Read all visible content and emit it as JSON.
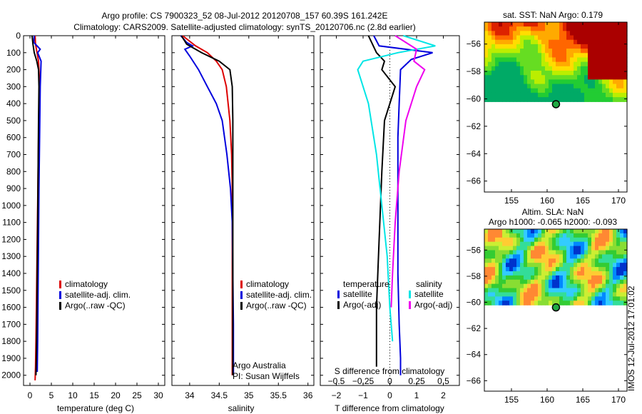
{
  "header": {
    "line1": "Argo profile: CS 7900323_52 08-Jul-2012 20120708_157 60.39S 161.242E",
    "line2": "Climatology: CARS2009. Satellite-adjusted climatology: synTS_20120706.nc (2.8d earlier)"
  },
  "side_text": "IMOS 12-Jul-2012 17:01:02",
  "chart_data": [
    {
      "id": "temperature",
      "type": "line",
      "xlabel": "temperature (deg C)",
      "xlim": [
        -1.5,
        31.5
      ],
      "xticks": [
        0,
        5,
        10,
        15,
        20,
        25,
        30
      ],
      "ylim": [
        0,
        2060
      ],
      "yticks": [
        0,
        100,
        200,
        300,
        400,
        500,
        600,
        700,
        800,
        900,
        1000,
        1100,
        1200,
        1300,
        1400,
        1500,
        1600,
        1700,
        1800,
        1900,
        2000
      ],
      "legend": [
        "climatology",
        "satellite-adj. clim.",
        "Argo(..raw -QC)"
      ],
      "series": [
        {
          "name": "climatology",
          "color": "#dd0000",
          "x": [
            1.2,
            1.3,
            2.0,
            2.2,
            2.1,
            2.0,
            1.9,
            1.8,
            1.7,
            1.6,
            1.5,
            1.4,
            1.3,
            1.2
          ],
          "y": [
            0,
            50,
            150,
            250,
            400,
            600,
            800,
            1000,
            1200,
            1400,
            1600,
            1800,
            1950,
            2030
          ]
        },
        {
          "name": "satellite-adj. clim.",
          "color": "#0000dd",
          "x": [
            1.0,
            0.9,
            2.4,
            1.8,
            2.6,
            2.4,
            2.3,
            2.2,
            2.1,
            2.0,
            1.9,
            1.8,
            1.7
          ],
          "y": [
            0,
            40,
            80,
            100,
            150,
            300,
            500,
            700,
            900,
            1200,
            1500,
            1800,
            1980
          ]
        },
        {
          "name": "Argo(..raw -QC)",
          "color": "#000000",
          "x": [
            0.5,
            0.7,
            1.0,
            1.6,
            2.0,
            2.1,
            2.0,
            1.9,
            1.8,
            1.7,
            1.6,
            1.5,
            1.4
          ],
          "y": [
            0,
            50,
            100,
            150,
            200,
            300,
            500,
            800,
            1100,
            1400,
            1700,
            1900,
            2000
          ]
        }
      ]
    },
    {
      "id": "salinity",
      "type": "line",
      "xlabel": "salinity",
      "xlim": [
        33.7,
        36.1
      ],
      "xticks": [
        34,
        34.5,
        35,
        35.5,
        36
      ],
      "xtick_labels": [
        "34",
        "34.5",
        "35",
        "35.5",
        "36"
      ],
      "ylim": [
        0,
        2060
      ],
      "legend": [
        "climatology",
        "satellite-adj. clim.",
        "Argo(..raw -QC)"
      ],
      "annotation": [
        "Argo Australia",
        "PI: Susan Wijffels"
      ],
      "series": [
        {
          "name": "climatology",
          "color": "#dd0000",
          "x": [
            33.88,
            34.1,
            34.3,
            34.45,
            34.55,
            34.62,
            34.68,
            34.71,
            34.72,
            34.72,
            34.72,
            34.72,
            34.72
          ],
          "y": [
            0,
            60,
            100,
            150,
            200,
            300,
            500,
            700,
            900,
            1200,
            1500,
            1800,
            2000
          ]
        },
        {
          "name": "satellite-adj. clim.",
          "color": "#0000dd",
          "x": [
            33.85,
            33.95,
            34.05,
            33.92,
            34.0,
            34.15,
            34.3,
            34.45,
            34.55,
            34.63,
            34.69,
            34.72,
            34.73,
            34.74,
            34.74
          ],
          "y": [
            0,
            40,
            60,
            80,
            120,
            200,
            300,
            400,
            500,
            700,
            900,
            1100,
            1400,
            1700,
            2000
          ]
        },
        {
          "name": "Argo(..raw -QC)",
          "color": "#000000",
          "x": [
            33.86,
            33.95,
            34.2,
            34.5,
            34.68,
            34.72,
            34.73,
            34.73,
            34.73,
            34.73,
            34.73
          ],
          "y": [
            0,
            50,
            100,
            150,
            200,
            300,
            500,
            800,
            1200,
            1600,
            2000
          ]
        }
      ]
    },
    {
      "id": "difference",
      "type": "line",
      "xlabel": "T difference from climatology",
      "xlabel_top": "S difference from climatology",
      "xlim": [
        -2.6,
        2.6
      ],
      "xticks": [
        -2,
        -1,
        0,
        1,
        2
      ],
      "xticks_top": [
        -0.5,
        -0.25,
        0,
        0.25,
        0.5
      ],
      "xtick_labels_top": [
        "−0.5",
        "−0.25",
        "0",
        "0.25",
        "0.5"
      ],
      "ylim": [
        0,
        2060
      ],
      "legend": {
        "temperature_title": "temperature",
        "salinity_title": "salinity",
        "items": [
          "satellite",
          "Argo(-adj)",
          "satellite",
          "Argo(-adj)"
        ]
      },
      "series": [
        {
          "name": "satellite",
          "color": "#0000dd",
          "x": [
            -0.6,
            -0.4,
            1.6,
            0.8,
            0.4,
            0.35,
            0.3,
            0.3,
            0.3,
            0.35,
            0.4,
            0.4
          ],
          "y": [
            0,
            60,
            100,
            140,
            200,
            400,
            600,
            1000,
            1400,
            1700,
            1900,
            2000
          ]
        },
        {
          "name": "Argo(-adj)",
          "color": "#000000",
          "x": [
            -0.8,
            -0.5,
            -0.2,
            -0.3,
            0.2,
            -0.2,
            -0.3,
            -0.4,
            -0.5,
            -0.5
          ],
          "y": [
            0,
            100,
            150,
            200,
            300,
            500,
            800,
            1200,
            1600,
            1950
          ]
        },
        {
          "name": "satellite",
          "color": "#00e5e5",
          "x": [
            0.5,
            1.7,
            0.3,
            -1.0,
            -1.2,
            -0.8,
            -0.5,
            -0.3,
            -0.1,
            0.0,
            0.1
          ],
          "y": [
            0,
            60,
            100,
            150,
            200,
            400,
            700,
            1000,
            1300,
            1600,
            1800
          ]
        },
        {
          "name": "Argo(-adj)",
          "color": "#ee00ee",
          "x": [
            0.2,
            1.0,
            0.9,
            1.3,
            1.0,
            0.6,
            0.35,
            0.2,
            0.1,
            0.05
          ],
          "y": [
            0,
            80,
            150,
            200,
            300,
            500,
            800,
            1100,
            1400,
            1600
          ]
        }
      ]
    },
    {
      "id": "sst_map",
      "type": "heatmap",
      "title": "sat. SST: NaN Argo: 0.179",
      "xlim": [
        151.2,
        171.2
      ],
      "xticks": [
        155,
        160,
        165,
        170
      ],
      "ylim": [
        -66.8,
        -54.4
      ],
      "yticks": [
        -56,
        -58,
        -60,
        -62,
        -64,
        -66
      ],
      "yticks_labels": [
        "−56",
        "−58",
        "−60",
        "−62",
        "−64",
        "−66"
      ],
      "data_lat_min": -60.2,
      "marker": [
        161.242,
        -60.39
      ]
    },
    {
      "id": "sla_map",
      "type": "heatmap",
      "title": "Altim. SLA: NaN",
      "subtitle": "Argo h1000: -0.065 h2000: -0.093",
      "xlim": [
        151.2,
        171.2
      ],
      "xticks": [
        155,
        160,
        165,
        170
      ],
      "ylim": [
        -66.8,
        -54.4
      ],
      "yticks": [
        -56,
        -58,
        -60,
        -62,
        -64,
        -66
      ],
      "yticks_labels": [
        "−56",
        "−58",
        "−60",
        "−62",
        "−64",
        "−66"
      ],
      "data_lat_min": -60.2,
      "marker": [
        161.242,
        -60.39
      ]
    }
  ]
}
